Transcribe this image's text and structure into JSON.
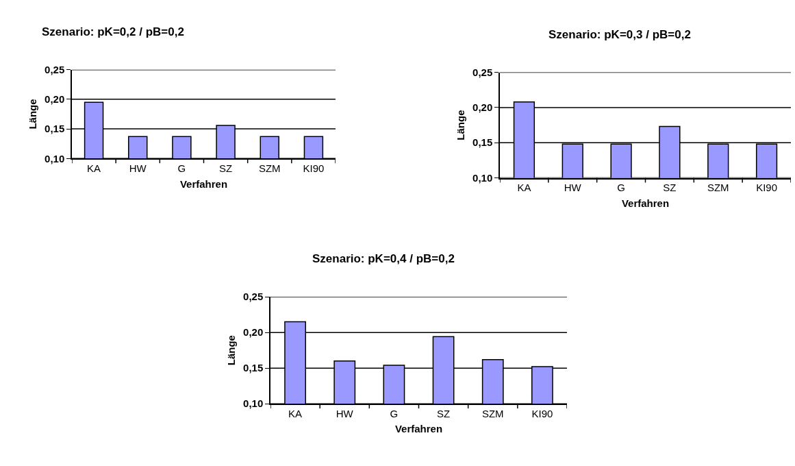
{
  "chart_data": [
    {
      "type": "bar",
      "title": "Szenario: pK=0,2 / pB=0,2",
      "xlabel": "Verfahren",
      "ylabel": "Länge",
      "categories": [
        "KA",
        "HW",
        "G",
        "SZ",
        "SZM",
        "KI90"
      ],
      "values": [
        0.195,
        0.137,
        0.137,
        0.156,
        0.137,
        0.137
      ],
      "color": "#9999ff",
      "ylim": [
        0.1,
        0.25
      ],
      "yticks": [
        {
          "value": 0.1,
          "label": "0,10"
        },
        {
          "value": 0.15,
          "label": "0,15"
        },
        {
          "value": 0.2,
          "label": "0,20"
        },
        {
          "value": 0.25,
          "label": "0,25"
        }
      ],
      "grid": "y"
    },
    {
      "type": "bar",
      "title": "Szenario: pK=0,3 / pB=0,2",
      "xlabel": "Verfahren",
      "ylabel": "Länge",
      "categories": [
        "KA",
        "HW",
        "G",
        "SZ",
        "SZM",
        "KI90"
      ],
      "values": [
        0.208,
        0.148,
        0.148,
        0.173,
        0.148,
        0.148
      ],
      "color": "#9999ff",
      "ylim": [
        0.1,
        0.25
      ],
      "yticks": [
        {
          "value": 0.1,
          "label": "0,10"
        },
        {
          "value": 0.15,
          "label": "0,15"
        },
        {
          "value": 0.2,
          "label": "0,20"
        },
        {
          "value": 0.25,
          "label": "0,25"
        }
      ],
      "grid": "y"
    },
    {
      "type": "bar",
      "title": "Szenario: pK=0,4 / pB=0,2",
      "xlabel": "Verfahren",
      "ylabel": "Länge",
      "categories": [
        "KA",
        "HW",
        "G",
        "SZ",
        "SZM",
        "KI90"
      ],
      "values": [
        0.215,
        0.16,
        0.154,
        0.194,
        0.162,
        0.152
      ],
      "color": "#9999ff",
      "ylim": [
        0.1,
        0.25
      ],
      "yticks": [
        {
          "value": 0.1,
          "label": "0,10"
        },
        {
          "value": 0.15,
          "label": "0,15"
        },
        {
          "value": 0.2,
          "label": "0,20"
        },
        {
          "value": 0.25,
          "label": "0,25"
        }
      ],
      "grid": "y"
    }
  ]
}
